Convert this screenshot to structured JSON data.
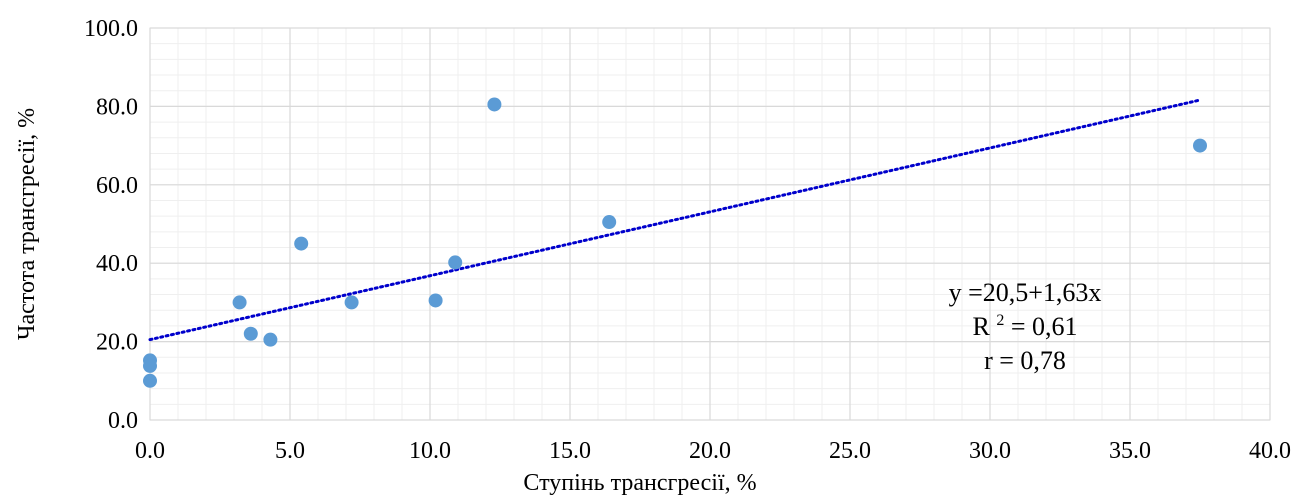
{
  "chart_data": {
    "type": "scatter",
    "xlabel": "Ступінь трансгресії, %",
    "ylabel": "Частота трансгресії, %",
    "xlim": [
      0,
      40
    ],
    "ylim": [
      0,
      100
    ],
    "x_major_step": 5,
    "y_major_step": 20,
    "x_minor_step": 1,
    "y_minor_step": 4,
    "x_tick_labels": [
      "0.0",
      "5.0",
      "10.0",
      "15.0",
      "20.0",
      "25.0",
      "30.0",
      "35.0",
      "40.0"
    ],
    "y_tick_labels": [
      "0.0",
      "20.0",
      "40.0",
      "60.0",
      "80.0",
      "100.0"
    ],
    "grid": true,
    "points": [
      {
        "x": 0.0,
        "y": 15.2
      },
      {
        "x": 0.0,
        "y": 13.8
      },
      {
        "x": 0.0,
        "y": 10.0
      },
      {
        "x": 3.2,
        "y": 30.0
      },
      {
        "x": 3.6,
        "y": 22.0
      },
      {
        "x": 4.3,
        "y": 20.5
      },
      {
        "x": 5.4,
        "y": 45.0
      },
      {
        "x": 7.2,
        "y": 30.0
      },
      {
        "x": 10.2,
        "y": 30.5
      },
      {
        "x": 10.9,
        "y": 40.2
      },
      {
        "x": 12.3,
        "y": 80.5
      },
      {
        "x": 16.4,
        "y": 50.5
      },
      {
        "x": 37.5,
        "y": 70.0
      }
    ],
    "trendline": {
      "type": "linear",
      "intercept": 20.5,
      "slope": 1.63,
      "x_range": [
        0,
        37.5
      ]
    },
    "annotation": {
      "equation": "y =20,5+1,63x",
      "r2_label": "R",
      "r2_sup": "2",
      "r2_value": " = 0,61",
      "r_text": "r = 0,78"
    },
    "colors": {
      "points": "#5b9bd5",
      "trendline": "#0000cc",
      "grid": "#d9d9d9",
      "minor_grid": "#efefef"
    }
  }
}
